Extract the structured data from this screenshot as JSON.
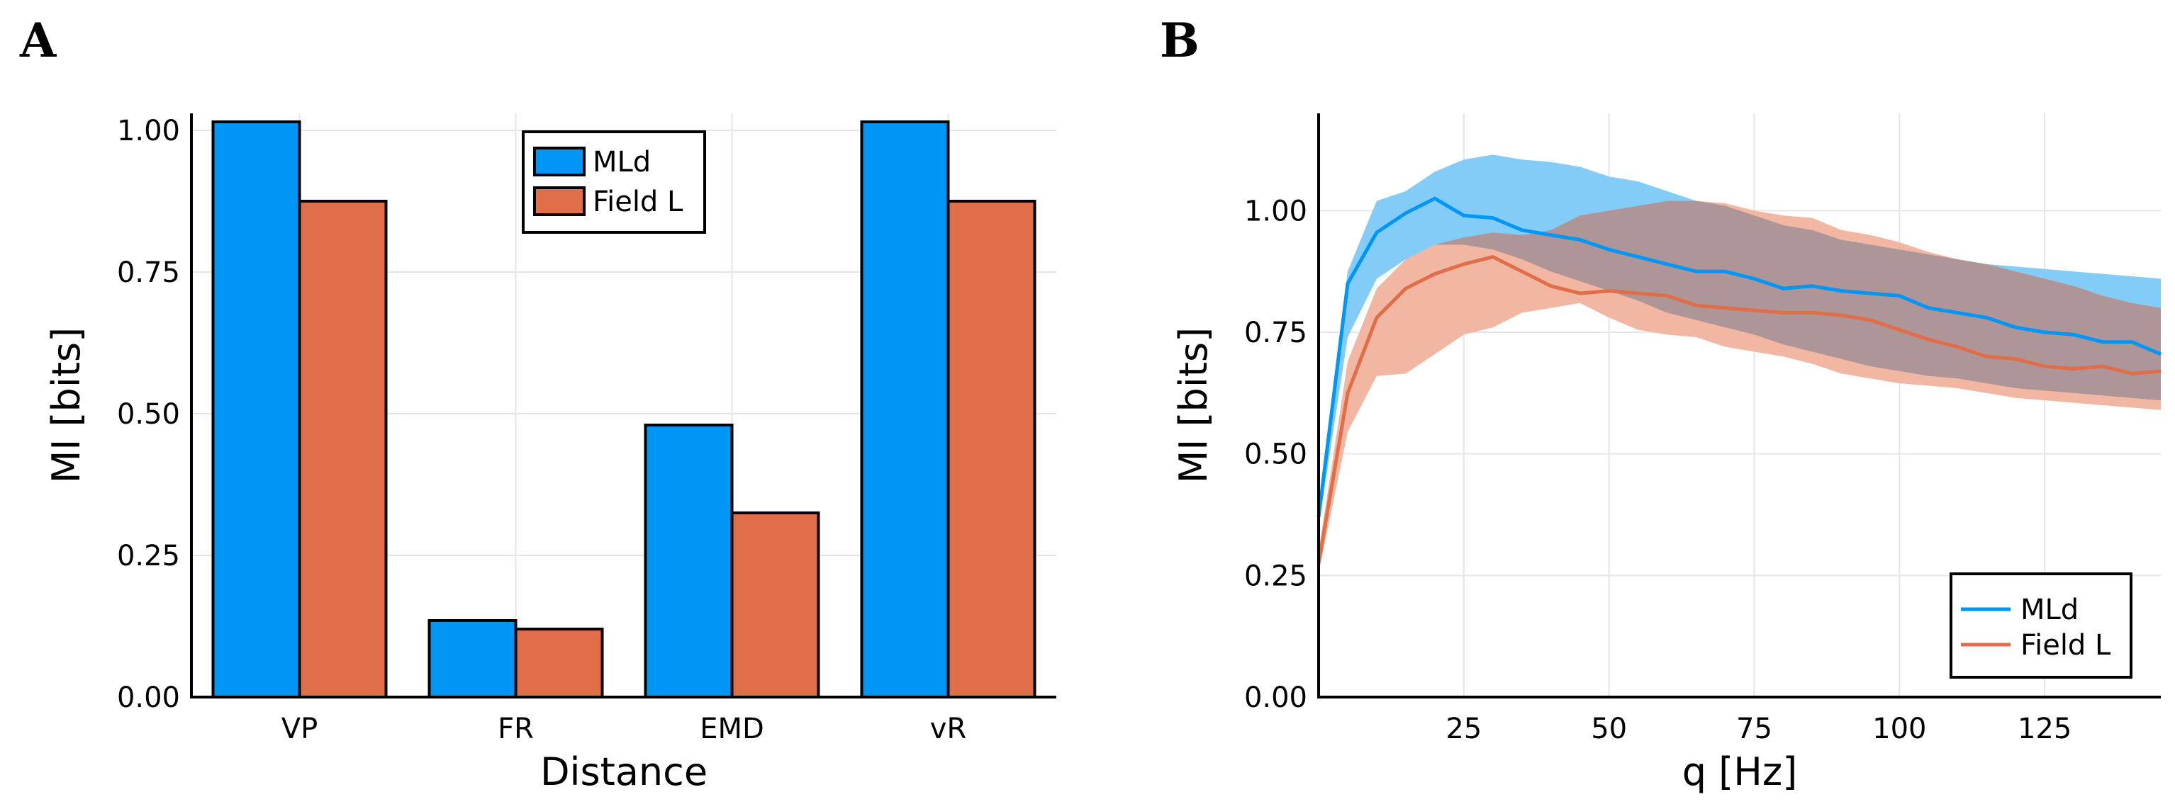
{
  "colors": {
    "mld": "#0096f5",
    "fieldL": "#e06e48",
    "mld_band": "#83ccf8",
    "fieldL_band": "#f2b7a3",
    "overlap": "#ae9598"
  },
  "chart_data": [
    {
      "panel": "A",
      "type": "bar",
      "xlabel": "Distance",
      "ylabel": "MI [bits]",
      "categories": [
        "VP",
        "FR",
        "EMD",
        "vR"
      ],
      "series": [
        {
          "name": "MLd",
          "values": [
            1.015,
            0.135,
            0.48,
            1.015
          ]
        },
        {
          "name": "Field L",
          "values": [
            0.875,
            0.12,
            0.325,
            0.875
          ]
        }
      ],
      "ylim": [
        0,
        1.03
      ],
      "yticks": [
        "0.00",
        "0.25",
        "0.50",
        "0.75",
        "1.00"
      ],
      "legend": [
        "MLd",
        "Field L"
      ],
      "legend_position": "top-center",
      "grid": true
    },
    {
      "panel": "B",
      "type": "line",
      "xlabel": "q [Hz]",
      "ylabel": "MI [bits]",
      "xlim": [
        0,
        145
      ],
      "ylim": [
        0,
        1.2
      ],
      "xticks": [
        "25",
        "50",
        "75",
        "100",
        "125"
      ],
      "yticks": [
        "0.00",
        "0.25",
        "0.50",
        "0.75",
        "1.00"
      ],
      "x": [
        0,
        5,
        10,
        15,
        20,
        25,
        30,
        35,
        40,
        45,
        50,
        55,
        60,
        65,
        70,
        75,
        80,
        85,
        90,
        95,
        100,
        105,
        110,
        115,
        120,
        125,
        130,
        135,
        140,
        145
      ],
      "series": [
        {
          "name": "MLd",
          "values": [
            0.37,
            0.85,
            0.955,
            0.995,
            1.025,
            0.99,
            0.985,
            0.96,
            0.95,
            0.94,
            0.92,
            0.905,
            0.89,
            0.875,
            0.875,
            0.86,
            0.84,
            0.845,
            0.835,
            0.83,
            0.825,
            0.8,
            0.79,
            0.78,
            0.76,
            0.75,
            0.745,
            0.73,
            0.73,
            0.705
          ],
          "upper": [
            0.39,
            0.875,
            1.02,
            1.04,
            1.08,
            1.105,
            1.115,
            1.105,
            1.1,
            1.09,
            1.07,
            1.06,
            1.04,
            1.02,
            1.01,
            0.99,
            0.97,
            0.96,
            0.94,
            0.93,
            0.92,
            0.91,
            0.9,
            0.89,
            0.885,
            0.88,
            0.875,
            0.87,
            0.865,
            0.86
          ],
          "lower": [
            0.35,
            0.74,
            0.86,
            0.9,
            0.93,
            0.93,
            0.92,
            0.9,
            0.875,
            0.855,
            0.835,
            0.815,
            0.79,
            0.775,
            0.76,
            0.745,
            0.725,
            0.71,
            0.695,
            0.68,
            0.67,
            0.66,
            0.655,
            0.645,
            0.635,
            0.63,
            0.625,
            0.62,
            0.615,
            0.61
          ]
        },
        {
          "name": "Field L",
          "values": [
            0.275,
            0.625,
            0.78,
            0.84,
            0.87,
            0.89,
            0.905,
            0.875,
            0.845,
            0.83,
            0.835,
            0.83,
            0.825,
            0.805,
            0.8,
            0.795,
            0.79,
            0.79,
            0.785,
            0.775,
            0.755,
            0.735,
            0.72,
            0.7,
            0.695,
            0.68,
            0.675,
            0.68,
            0.665,
            0.67
          ],
          "upper": [
            0.3,
            0.69,
            0.84,
            0.9,
            0.93,
            0.945,
            0.955,
            0.95,
            0.96,
            0.99,
            1.0,
            1.01,
            1.02,
            1.02,
            1.015,
            1.0,
            0.99,
            0.985,
            0.96,
            0.95,
            0.935,
            0.915,
            0.9,
            0.89,
            0.875,
            0.86,
            0.845,
            0.825,
            0.81,
            0.8
          ],
          "lower": [
            0.255,
            0.545,
            0.66,
            0.665,
            0.705,
            0.745,
            0.76,
            0.79,
            0.8,
            0.81,
            0.78,
            0.755,
            0.745,
            0.74,
            0.72,
            0.71,
            0.7,
            0.685,
            0.665,
            0.655,
            0.645,
            0.64,
            0.635,
            0.625,
            0.615,
            0.61,
            0.605,
            0.6,
            0.595,
            0.59
          ]
        }
      ],
      "legend": [
        "MLd",
        "Field L"
      ],
      "legend_position": "bottom-right",
      "grid": true
    }
  ]
}
